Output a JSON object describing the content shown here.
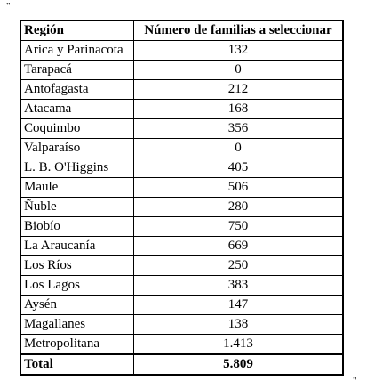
{
  "marks": {
    "top": "\"",
    "bottom": "\""
  },
  "table": {
    "header": [
      "Región",
      "Número de familias a seleccionar"
    ],
    "rows": [
      [
        "Arica y Parinacota",
        "132"
      ],
      [
        "Tarapacá",
        "0"
      ],
      [
        "Antofagasta",
        "212"
      ],
      [
        "Atacama",
        "168"
      ],
      [
        "Coquimbo",
        "356"
      ],
      [
        "Valparaíso",
        "0"
      ],
      [
        "L. B. O'Higgins",
        "405"
      ],
      [
        "Maule",
        "506"
      ],
      [
        "Ñuble",
        "280"
      ],
      [
        "Biobío",
        "750"
      ],
      [
        "La Araucanía",
        "669"
      ],
      [
        "Los Ríos",
        "250"
      ],
      [
        "Los Lagos",
        "383"
      ],
      [
        "Aysén",
        "147"
      ],
      [
        "Magallanes",
        "138"
      ],
      [
        "Metropolitana",
        "1.413"
      ]
    ],
    "total": [
      "Total",
      "5.809"
    ]
  }
}
